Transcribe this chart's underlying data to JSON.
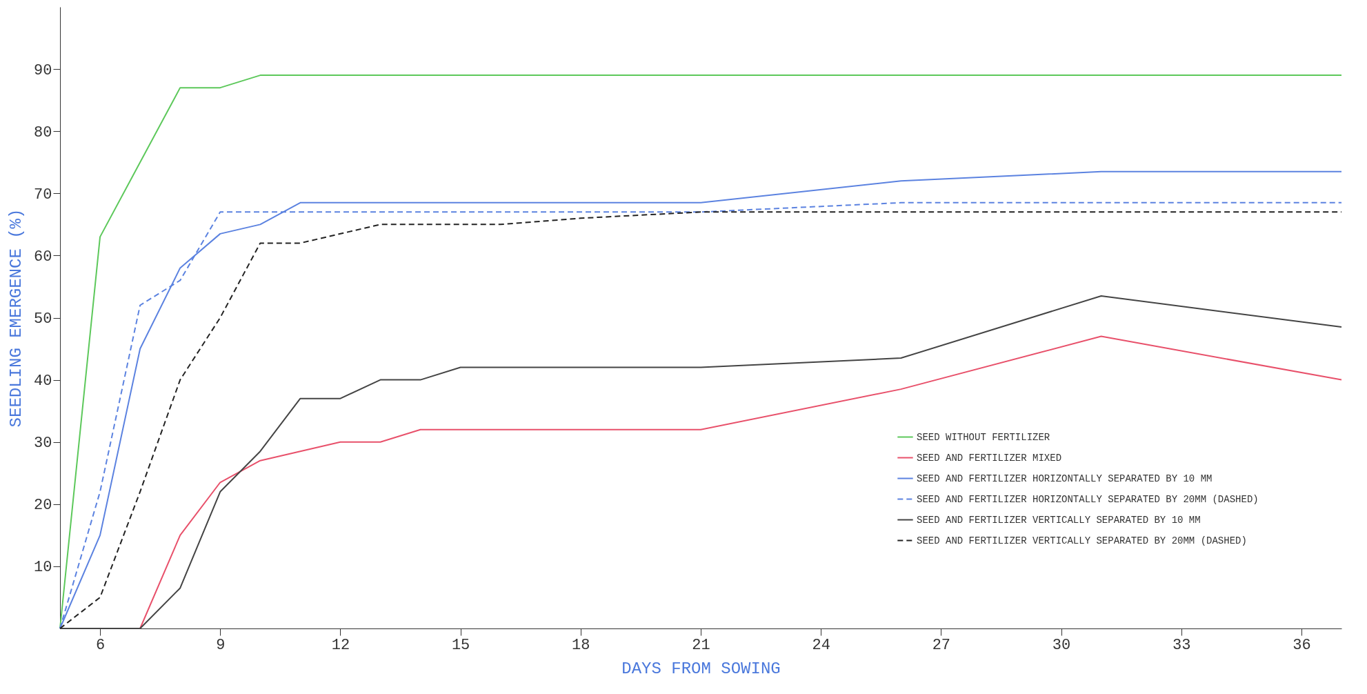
{
  "chart_data": {
    "type": "line",
    "xlabel": "DAYS FROM SOWING",
    "ylabel": "SEEDLING EMERGENCE (%)",
    "xlim": [
      5,
      37
    ],
    "xticks": [
      6,
      9,
      12,
      15,
      18,
      21,
      24,
      27,
      30,
      33,
      36
    ],
    "ylim": [
      0,
      100
    ],
    "yticks": [
      10,
      20,
      30,
      40,
      50,
      60,
      70,
      80,
      90
    ],
    "grid": false,
    "legend": "bottom right",
    "marker": "none",
    "series": [
      {
        "name": "SEED WITHOUT FERTILIZER",
        "color": "#5cc85a",
        "line_style": "solid",
        "x": [
          5,
          6,
          8,
          9,
          10,
          37
        ],
        "values": [
          0,
          63,
          87,
          87,
          89,
          89
        ]
      },
      {
        "name": "SEED AND FERTILIZER MIXED",
        "color": "#e8506a",
        "line_style": "solid",
        "x": [
          5,
          7,
          8,
          9,
          10,
          11,
          12,
          13,
          14,
          21,
          26,
          31,
          37
        ],
        "values": [
          0,
          0,
          15,
          23.5,
          27,
          28.5,
          30,
          30,
          32,
          32,
          38.5,
          47,
          40
        ]
      },
      {
        "name": "SEED AND FERTILIZER HORIZONTALLY SEPARATED BY 10 MM",
        "color": "#5b82e0",
        "line_style": "solid",
        "x": [
          5,
          6,
          7,
          8,
          9,
          10,
          11,
          21,
          26,
          31,
          37
        ],
        "values": [
          0,
          15,
          45,
          58,
          63.5,
          65,
          68.5,
          68.5,
          72,
          73.5,
          73.5
        ]
      },
      {
        "name": "SEED AND FERTILIZER HORIZONTALLY SEPARATED BY 20MM (DASHED)",
        "color": "#5b82e0",
        "line_style": "dashed",
        "x": [
          5,
          6,
          7,
          8,
          9,
          21,
          26,
          37
        ],
        "values": [
          0,
          22,
          52,
          56,
          67,
          67,
          68.5,
          68.5
        ]
      },
      {
        "name": "SEED AND FERTILIZER VERTICALLY SEPARATED BY 10 MM",
        "color": "#444444",
        "line_style": "solid",
        "x": [
          5,
          7,
          8,
          9,
          10,
          11,
          12,
          13,
          14,
          15,
          21,
          26,
          31,
          37
        ],
        "values": [
          0,
          0,
          6.5,
          22,
          28.5,
          37,
          37,
          40,
          40,
          42,
          42,
          43.5,
          53.5,
          48.5
        ]
      },
      {
        "name": "SEED AND FERTILIZER VERTICALLY SEPARATED BY 20MM (DASHED)",
        "color": "#222222",
        "line_style": "dashed",
        "x": [
          5,
          6,
          7,
          8,
          9,
          10,
          11,
          13,
          16,
          18,
          21,
          37
        ],
        "values": [
          0,
          5,
          22,
          40,
          50,
          62,
          62,
          65,
          65,
          66,
          67,
          67
        ]
      }
    ]
  }
}
